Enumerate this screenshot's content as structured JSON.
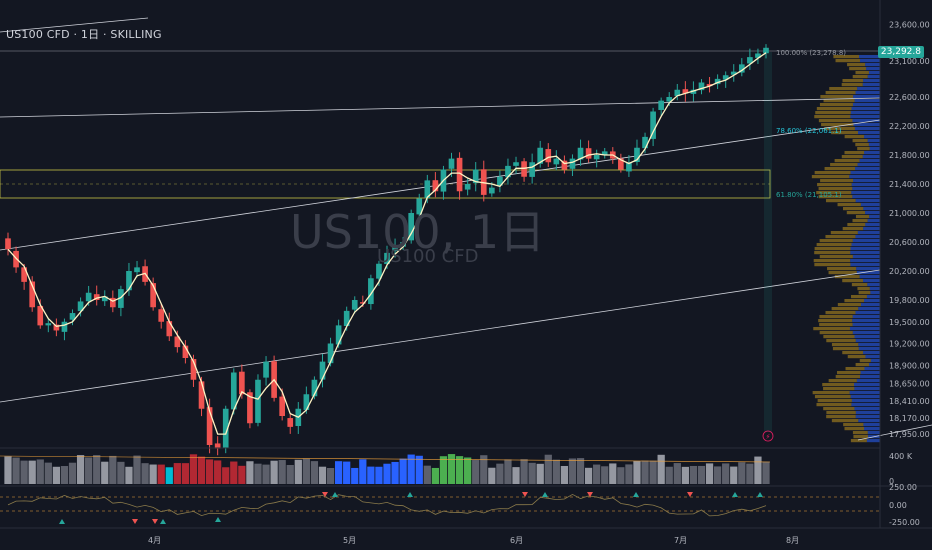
{
  "header": {
    "symbol_title": "US100 CFD · 1日 · SKILLING"
  },
  "watermark": {
    "main": "US100, 1日",
    "sub": "US100 CFD"
  },
  "price_axis": {
    "ticks": [
      "23,600.00",
      "23,100.00",
      "22,600.00",
      "22,200.00",
      "21,800.00",
      "21,400.00",
      "21,000.00",
      "20,600.00",
      "20,200.00",
      "19,800.00",
      "19,500.00",
      "19,200.00",
      "18,900.00",
      "18,650.00",
      "18,410.00",
      "18,170.00",
      "17,950.00"
    ],
    "current_price": "23,292.8"
  },
  "volume_axis": {
    "label": "400 K",
    "zero": "0"
  },
  "oscillator_axis": {
    "ticks": [
      "250.00",
      "0.00",
      "-250.00"
    ]
  },
  "time_axis": {
    "labels": [
      "4月",
      "5月",
      "6月",
      "7月",
      "8月"
    ]
  },
  "fib_levels": [
    {
      "label": "100.00% (23,278.8)",
      "color": "#9598a1"
    },
    {
      "label": "78.60% (22,061.1)",
      "color": "#26c6da"
    },
    {
      "label": "61.80% (21,105.1)",
      "color": "#26a69a"
    }
  ],
  "colors": {
    "up": "#26a69a",
    "down": "#ef5350",
    "ma": "#fff3c4",
    "zone": "#c7c246",
    "profile": "#2962ff"
  },
  "chart_data": {
    "type": "candlestick",
    "timeframe": "1日",
    "price_range": [
      17800,
      23800
    ],
    "closes": [
      20500,
      20250,
      20050,
      19700,
      19450,
      19480,
      19380,
      19500,
      19620,
      19780,
      19900,
      19800,
      19850,
      19700,
      19950,
      20200,
      20250,
      20050,
      19700,
      19500,
      19300,
      19150,
      19000,
      18700,
      18300,
      17800,
      17750,
      18300,
      18800,
      18500,
      18100,
      18700,
      18950,
      18450,
      18200,
      18050,
      18300,
      18500,
      18700,
      18950,
      19200,
      19450,
      19650,
      19800,
      19750,
      20100,
      20300,
      20450,
      20550,
      20600,
      21000,
      21200,
      21450,
      21300,
      21600,
      21750,
      21300,
      21400,
      21600,
      21250,
      21350,
      21500,
      21650,
      21700,
      21500,
      21700,
      21900,
      21700,
      21750,
      21600,
      21750,
      21900,
      21750,
      21800,
      21850,
      21750,
      21600,
      21700,
      21900,
      22050,
      22400,
      22550,
      22600,
      22700,
      22650,
      22700,
      22800,
      22750,
      22850,
      22900,
      22950,
      23050,
      23150,
      23200,
      23278.8
    ],
    "fibonacci": [
      {
        "level": "100.00%",
        "price": 23278.8
      },
      {
        "level": "78.60%",
        "price": 22061.1
      },
      {
        "level": "61.80%",
        "price": 21105.1
      }
    ],
    "oscillator_range": [
      -250,
      250
    ],
    "xlabel": "",
    "ylabel": ""
  }
}
